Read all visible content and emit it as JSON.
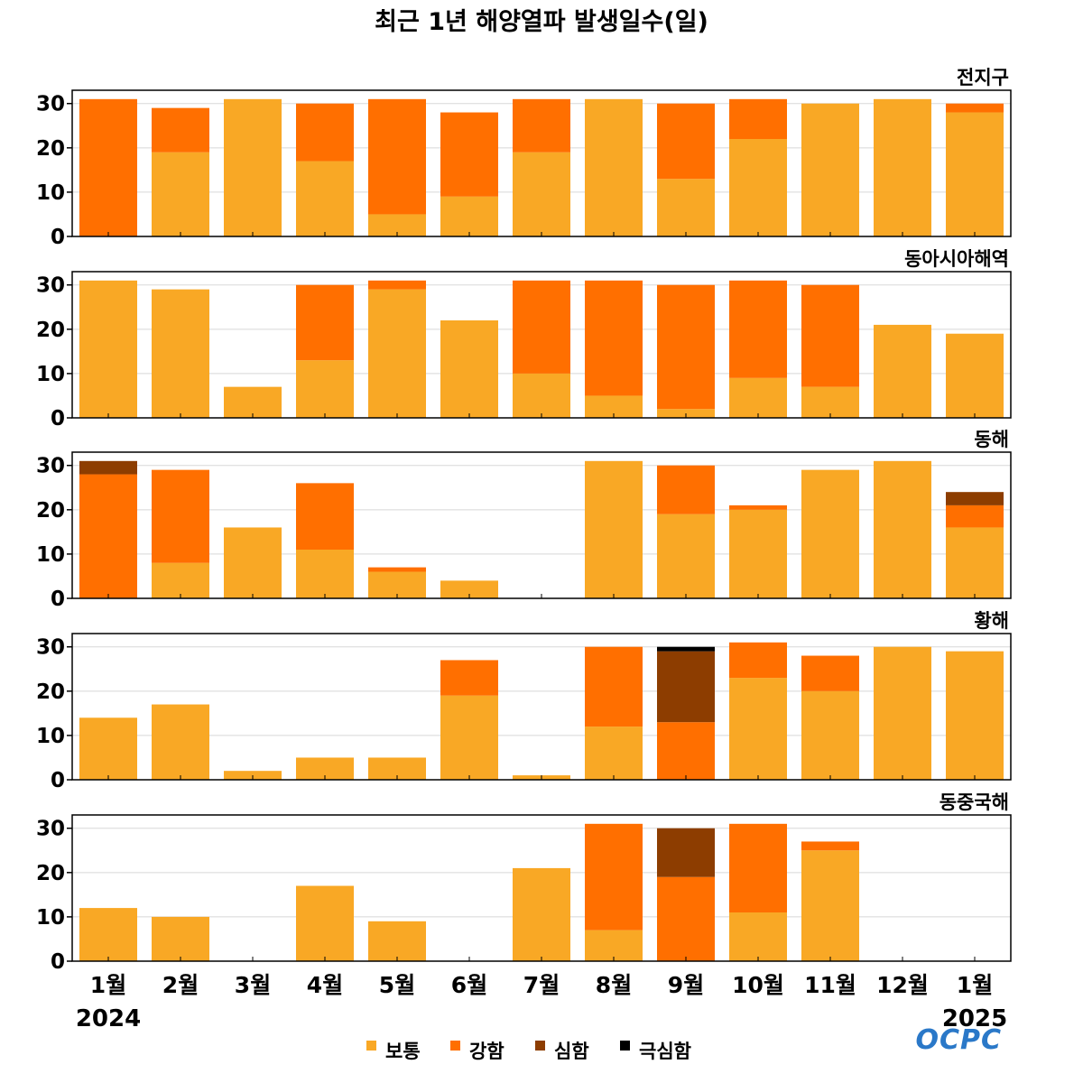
{
  "chart_data": {
    "type": "bar",
    "stacked": true,
    "title": "최근 1년 해양열파 발생일수(일)",
    "categories": [
      "1월",
      "2월",
      "3월",
      "4월",
      "5월",
      "6월",
      "7월",
      "8월",
      "9월",
      "10월",
      "11월",
      "12월",
      "1월"
    ],
    "year_labels": {
      "start": "2024",
      "end": "2025"
    },
    "ylim": [
      0,
      33
    ],
    "yticks": [
      0,
      10,
      20,
      30
    ],
    "grid": true,
    "legend_position": "bottom-center",
    "series_colors": {
      "보통": "#F9A825",
      "강함": "#FF6F00",
      "심함": "#8D3D00",
      "극심함": "#000000"
    },
    "legend": [
      "보통",
      "강함",
      "심함",
      "극심함"
    ],
    "panels": [
      {
        "region": "전지구",
        "series": [
          {
            "name": "보통",
            "values": [
              0,
              19,
              31,
              17,
              5,
              9,
              19,
              31,
              13,
              22,
              30,
              31,
              28
            ]
          },
          {
            "name": "강함",
            "values": [
              31,
              10,
              0,
              13,
              26,
              19,
              12,
              0,
              17,
              9,
              0,
              0,
              2
            ]
          },
          {
            "name": "심함",
            "values": [
              0,
              0,
              0,
              0,
              0,
              0,
              0,
              0,
              0,
              0,
              0,
              0,
              0
            ]
          },
          {
            "name": "극심함",
            "values": [
              0,
              0,
              0,
              0,
              0,
              0,
              0,
              0,
              0,
              0,
              0,
              0,
              0
            ]
          }
        ]
      },
      {
        "region": "동아시아해역",
        "series": [
          {
            "name": "보통",
            "values": [
              31,
              29,
              7,
              13,
              29,
              22,
              10,
              5,
              2,
              9,
              7,
              21,
              19
            ]
          },
          {
            "name": "강함",
            "values": [
              0,
              0,
              0,
              17,
              2,
              0,
              21,
              26,
              28,
              22,
              23,
              0,
              0
            ]
          },
          {
            "name": "심함",
            "values": [
              0,
              0,
              0,
              0,
              0,
              0,
              0,
              0,
              0,
              0,
              0,
              0,
              0
            ]
          },
          {
            "name": "극심함",
            "values": [
              0,
              0,
              0,
              0,
              0,
              0,
              0,
              0,
              0,
              0,
              0,
              0,
              0
            ]
          }
        ]
      },
      {
        "region": "동해",
        "series": [
          {
            "name": "보통",
            "values": [
              0,
              8,
              16,
              11,
              6,
              4,
              0,
              31,
              19,
              20,
              29,
              31,
              16
            ]
          },
          {
            "name": "강함",
            "values": [
              28,
              21,
              0,
              15,
              1,
              0,
              0,
              0,
              11,
              1,
              0,
              0,
              5
            ]
          },
          {
            "name": "심함",
            "values": [
              3,
              0,
              0,
              0,
              0,
              0,
              0,
              0,
              0,
              0,
              0,
              0,
              3
            ]
          },
          {
            "name": "극심함",
            "values": [
              0,
              0,
              0,
              0,
              0,
              0,
              0,
              0,
              0,
              0,
              0,
              0,
              0
            ]
          }
        ]
      },
      {
        "region": "황해",
        "series": [
          {
            "name": "보통",
            "values": [
              14,
              17,
              2,
              5,
              5,
              19,
              1,
              12,
              0,
              23,
              20,
              30,
              29
            ]
          },
          {
            "name": "강함",
            "values": [
              0,
              0,
              0,
              0,
              0,
              8,
              0,
              18,
              13,
              8,
              8,
              0,
              0
            ]
          },
          {
            "name": "심함",
            "values": [
              0,
              0,
              0,
              0,
              0,
              0,
              0,
              0,
              16,
              0,
              0,
              0,
              0
            ]
          },
          {
            "name": "극심함",
            "values": [
              0,
              0,
              0,
              0,
              0,
              0,
              0,
              0,
              1,
              0,
              0,
              0,
              0
            ]
          }
        ]
      },
      {
        "region": "동중국해",
        "series": [
          {
            "name": "보통",
            "values": [
              12,
              10,
              0,
              17,
              9,
              0,
              21,
              7,
              0,
              11,
              25,
              0,
              0
            ]
          },
          {
            "name": "강함",
            "values": [
              0,
              0,
              0,
              0,
              0,
              0,
              0,
              24,
              19,
              20,
              2,
              0,
              0
            ]
          },
          {
            "name": "심함",
            "values": [
              0,
              0,
              0,
              0,
              0,
              0,
              0,
              0,
              11,
              0,
              0,
              0,
              0
            ]
          },
          {
            "name": "극심함",
            "values": [
              0,
              0,
              0,
              0,
              0,
              0,
              0,
              0,
              0,
              0,
              0,
              0,
              0
            ]
          }
        ]
      }
    ]
  },
  "logo": {
    "text": "OCPC",
    "color": "#2A78C8"
  }
}
